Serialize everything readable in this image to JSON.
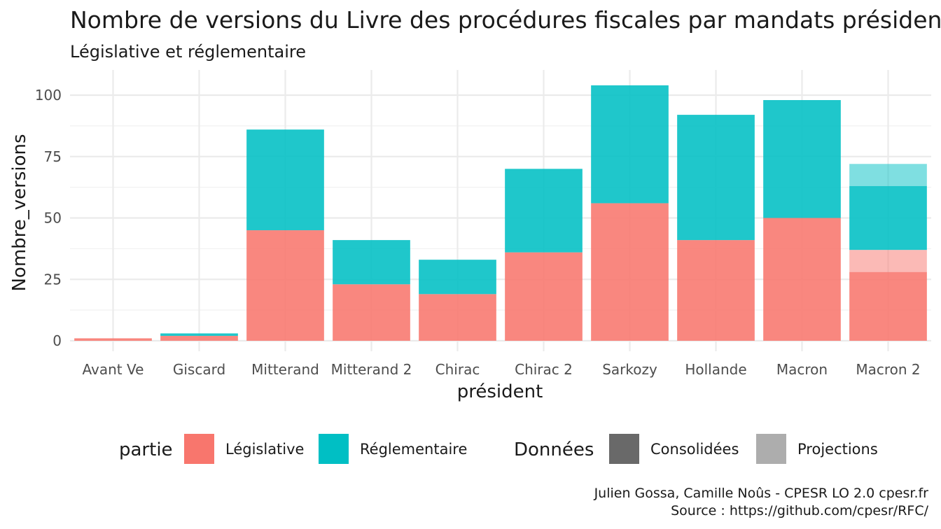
{
  "chart_data": {
    "type": "bar",
    "stacked": true,
    "title": "Nombre de versions du Livre des procédures fiscales par mandats présidentiels",
    "subtitle": "Législative et réglementaire",
    "xlabel": "président",
    "ylabel": "Nombre_versions",
    "ylim": [
      0,
      108
    ],
    "yticks": [
      0,
      25,
      50,
      75,
      100
    ],
    "grid": true,
    "legend_position": "bottom",
    "categories": [
      "Avant Ve",
      "Giscard",
      "Mitterand",
      "Mitterand 2",
      "Chirac",
      "Chirac 2",
      "Sarkozy",
      "Hollande",
      "Macron",
      "Macron 2"
    ],
    "series": [
      {
        "name": "Législative",
        "group": "Consolidées",
        "color": "#F8766D",
        "values": [
          1,
          2,
          45,
          23,
          19,
          36,
          56,
          41,
          50,
          28
        ]
      },
      {
        "name": "Législative",
        "group": "Projections",
        "color": "#F8766D",
        "values": [
          0,
          0,
          0,
          0,
          0,
          0,
          0,
          0,
          0,
          9
        ]
      },
      {
        "name": "Réglementaire",
        "group": "Consolidées",
        "color": "#00BFC4",
        "values": [
          0,
          1,
          41,
          18,
          14,
          34,
          48,
          51,
          48,
          26
        ]
      },
      {
        "name": "Réglementaire",
        "group": "Projections",
        "color": "#00BFC4",
        "values": [
          0,
          0,
          0,
          0,
          0,
          0,
          0,
          0,
          0,
          9
        ]
      }
    ],
    "legend": {
      "partie_title": "partie",
      "partie_items": [
        {
          "label": "Législative",
          "color": "#F8766D"
        },
        {
          "label": "Réglementaire",
          "color": "#00BFC4"
        }
      ],
      "donnees_title": "Données",
      "donnees_items": [
        {
          "label": "Consolidées",
          "color": "#696969"
        },
        {
          "label": "Projections",
          "color": "#ADADAD"
        }
      ]
    },
    "caption": [
      "Julien Gossa, Camille Noûs - CPESR LO 2.0 cpesr.fr",
      "Source : https://github.com/cpesr/RFC/"
    ]
  }
}
